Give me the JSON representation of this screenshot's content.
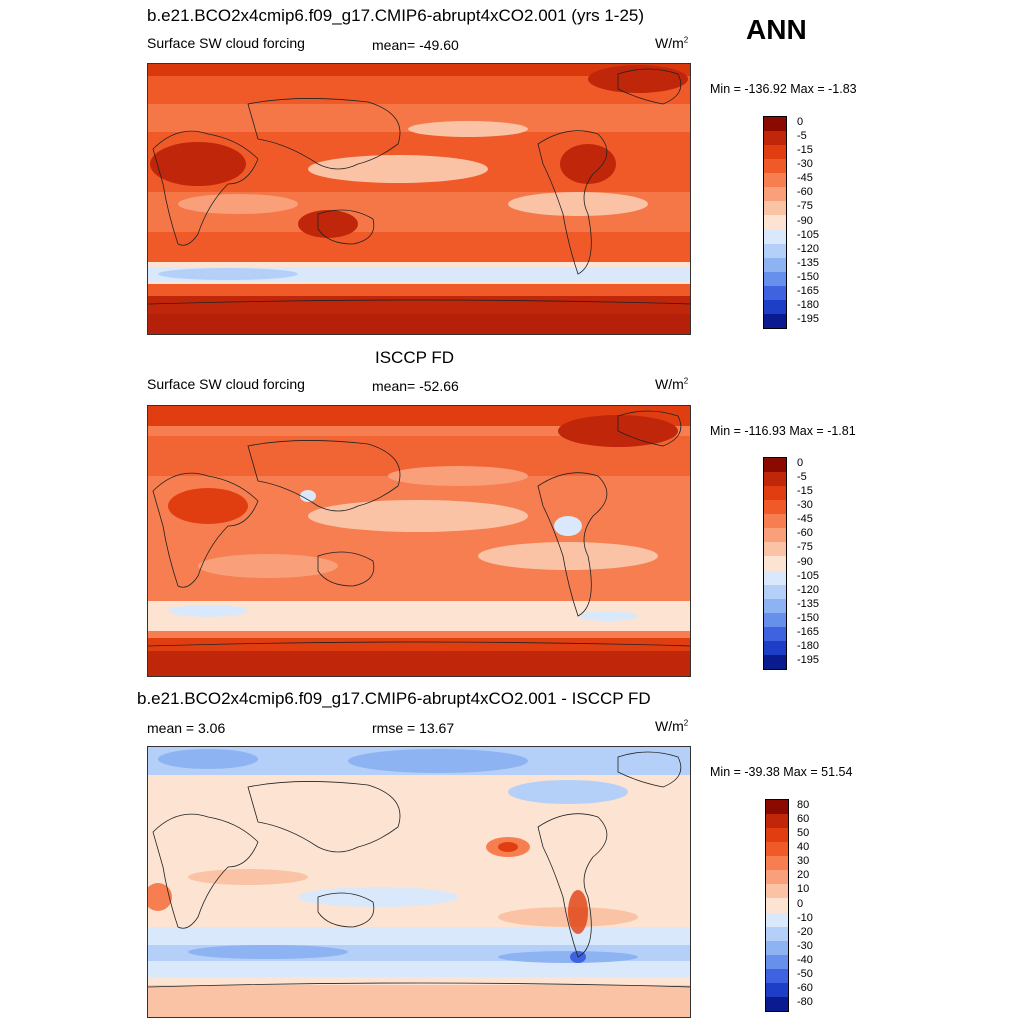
{
  "header": {
    "season": "ANN"
  },
  "panels": [
    {
      "title": "b.e21.BCO2x4cmip6.f09_g17.CMIP6-abrupt4xCO2.001 (yrs 1-25)",
      "left_label": "Surface SW cloud forcing",
      "center_label": "mean= -49.60",
      "units_base": "W/m",
      "units_exp": "2",
      "minmax": "Min = -136.92 Max =  -1.83",
      "cb_labels": [
        "0",
        "-5",
        "-15",
        "-30",
        "-45",
        "-60",
        "-75",
        "-90",
        "-105",
        "-120",
        "-135",
        "-150",
        "-165",
        "-180",
        "-195"
      ],
      "cb_colors": [
        "#8b0a00",
        "#c0260a",
        "#e03e10",
        "#f05a28",
        "#f67e50",
        "#f9a07a",
        "#fbc3a6",
        "#fde3d2",
        "#d9e9fb",
        "#b4d0f8",
        "#8db3f2",
        "#6790ec",
        "#3f63e0",
        "#1f3ec8",
        "#0a1a8f"
      ]
    },
    {
      "title": "ISCCP FD",
      "left_label": "Surface SW cloud forcing",
      "center_label": "mean= -52.66",
      "units_base": "W/m",
      "units_exp": "2",
      "minmax": "Min = -116.93 Max =  -1.81",
      "cb_labels": [
        "0",
        "-5",
        "-15",
        "-30",
        "-45",
        "-60",
        "-75",
        "-90",
        "-105",
        "-120",
        "-135",
        "-150",
        "-165",
        "-180",
        "-195"
      ],
      "cb_colors": [
        "#8b0a00",
        "#c0260a",
        "#e03e10",
        "#f05a28",
        "#f67e50",
        "#f9a07a",
        "#fbc3a6",
        "#fde3d2",
        "#d9e9fb",
        "#b4d0f8",
        "#8db3f2",
        "#6790ec",
        "#3f63e0",
        "#1f3ec8",
        "#0a1a8f"
      ]
    },
    {
      "title": "b.e21.BCO2x4cmip6.f09_g17.CMIP6-abrupt4xCO2.001 - ISCCP FD",
      "left_label": "mean =   3.06",
      "center_label": "rmse =  13.67",
      "units_base": "W/m",
      "units_exp": "2",
      "minmax": "Min = -39.38 Max =  51.54",
      "cb_labels": [
        "80",
        "60",
        "50",
        "40",
        "30",
        "20",
        "10",
        "0",
        "-10",
        "-20",
        "-30",
        "-40",
        "-50",
        "-60",
        "-80"
      ],
      "cb_colors": [
        "#8b0a00",
        "#c0260a",
        "#e03e10",
        "#f05a28",
        "#f67e50",
        "#f9a07a",
        "#fbc3a6",
        "#fde3d2",
        "#d9e9fb",
        "#b4d0f8",
        "#8db3f2",
        "#6790ec",
        "#3f63e0",
        "#1f3ec8",
        "#0a1a8f"
      ]
    }
  ]
}
